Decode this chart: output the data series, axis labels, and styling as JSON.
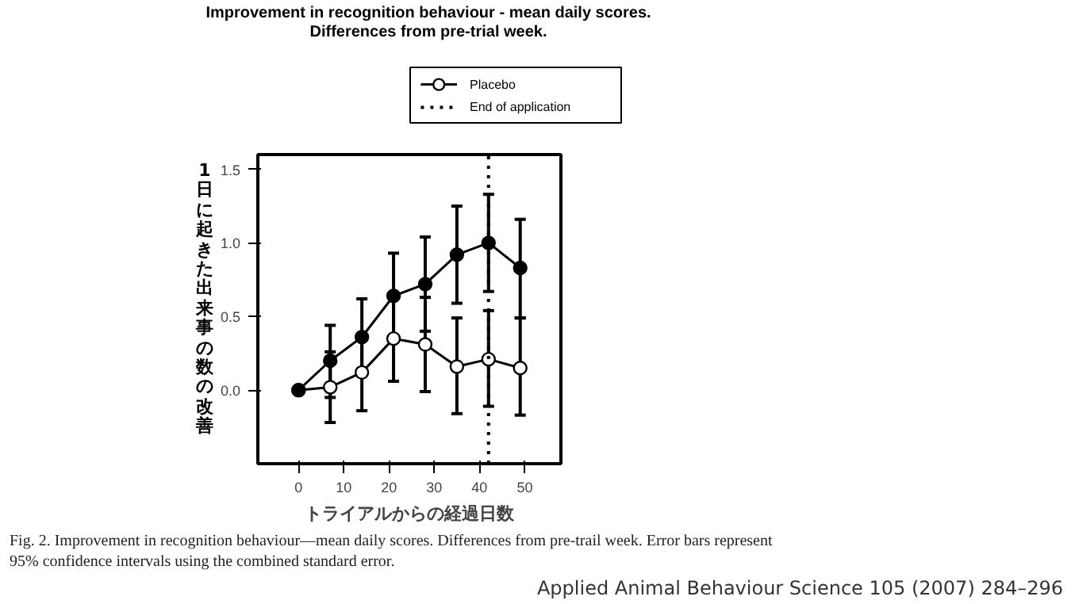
{
  "chart_data": {
    "type": "line",
    "title": "Improvement in recognition behaviour - mean daily scores.",
    "subtitle": "Differences from pre-trial week.",
    "xlabel": "トライアルからの経過日数",
    "ylabel": "1日に起きた出来事の数の改善",
    "x": [
      0,
      7,
      14,
      21,
      28,
      35,
      42,
      49
    ],
    "series": [
      {
        "name": "Placebo",
        "color": "#000000",
        "values": [
          0,
          0.02,
          0.12,
          0.35,
          0.31,
          0.16,
          0.21,
          0.15
        ],
        "errors": [
          null,
          [
            -0.22,
            0.26
          ],
          [
            -0.14,
            0.38
          ],
          [
            0.06,
            0.64
          ],
          [
            -0.01,
            0.63
          ],
          [
            -0.16,
            0.49
          ],
          [
            -0.11,
            0.54
          ],
          [
            -0.17,
            0.49
          ]
        ]
      },
      {
        "color": "#000000",
        "values": [
          0,
          0.2,
          0.36,
          0.64,
          0.72,
          0.92,
          1.0,
          0.83
        ],
        "errors": [
          null,
          [
            -0.05,
            0.44
          ],
          [
            0.1,
            0.62
          ],
          [
            0.35,
            0.93
          ],
          [
            0.4,
            1.04
          ],
          [
            0.59,
            1.25
          ],
          [
            0.67,
            1.33
          ],
          [
            0.49,
            1.16
          ]
        ]
      }
    ],
    "ref_lines": [
      {
        "axis": "x",
        "value": 42,
        "label": "End of application",
        "color": "#000000",
        "line_style": "dotted"
      }
    ],
    "xlim": [
      -9,
      58
    ],
    "ylim": [
      -0.5,
      1.6
    ],
    "xticks": [
      0,
      10,
      20,
      30,
      40,
      50
    ],
    "yticks": [
      {
        "value": 0,
        "label": "0.0"
      },
      {
        "value": 0.5,
        "label": "0.5"
      },
      {
        "value": 1,
        "label": "1.0"
      },
      {
        "value": 1.5,
        "label": "1.5"
      }
    ],
    "grid": false,
    "legend": "top right",
    "marker": "circle",
    "line_style": "solid",
    "annotations": [
      "Fig. 2.  Improvement in recognition behaviour—mean daily scores. Differences from pre-trail week. Error bars represent",
      "95% confidence intervals using the combined standard error.",
      "Applied Animal Behaviour Science 105 (2007) 284–296"
    ]
  }
}
